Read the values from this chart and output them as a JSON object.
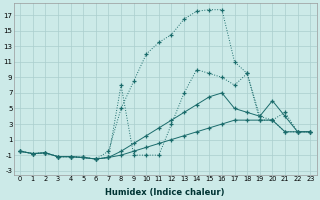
{
  "xlabel": "Humidex (Indice chaleur)",
  "bg_color": "#cceae8",
  "grid_color": "#aacece",
  "line_color": "#1a6b6b",
  "xlim": [
    -0.5,
    23.5
  ],
  "ylim": [
    -3.5,
    18.5
  ],
  "xticks": [
    0,
    1,
    2,
    3,
    4,
    5,
    6,
    7,
    8,
    9,
    10,
    11,
    12,
    13,
    14,
    15,
    16,
    17,
    18,
    19,
    20,
    21,
    22,
    23
  ],
  "yticks": [
    -3,
    -1,
    1,
    3,
    5,
    7,
    9,
    11,
    13,
    15,
    17
  ],
  "s1_x": [
    0,
    1,
    2,
    3,
    4,
    5,
    6,
    7,
    8,
    9,
    10,
    11,
    12,
    13,
    14,
    15,
    16,
    17,
    18,
    19,
    20,
    21,
    22,
    23
  ],
  "s1_y": [
    -0.5,
    -0.8,
    -0.7,
    -1.2,
    -1.2,
    -1.3,
    -1.5,
    -1.3,
    -1.0,
    -0.5,
    0.0,
    0.5,
    1.0,
    1.5,
    2.0,
    2.5,
    3.0,
    3.5,
    3.5,
    3.5,
    3.5,
    2.0,
    2.0,
    2.0
  ],
  "s2_x": [
    0,
    1,
    2,
    3,
    4,
    5,
    6,
    7,
    8,
    9,
    10,
    11,
    12,
    13,
    14,
    15,
    16,
    17,
    18,
    19,
    20,
    21,
    22,
    23
  ],
  "s2_y": [
    -0.5,
    -0.8,
    -0.7,
    -1.2,
    -1.2,
    -1.3,
    -1.5,
    -1.3,
    -0.5,
    0.5,
    1.5,
    2.5,
    3.5,
    4.5,
    5.5,
    6.5,
    7.0,
    5.0,
    4.5,
    4.0,
    6.0,
    4.0,
    2.0,
    2.0
  ],
  "s3_x": [
    0,
    1,
    2,
    3,
    4,
    5,
    6,
    7,
    8,
    9,
    10,
    11,
    12,
    13,
    14,
    15,
    16,
    17,
    18,
    19,
    20,
    21,
    22,
    23
  ],
  "s3_y": [
    -0.5,
    -0.8,
    -0.7,
    -1.2,
    -1.2,
    -1.3,
    -1.5,
    -1.3,
    8.0,
    -1.0,
    -1.0,
    -1.0,
    3.0,
    7.0,
    10.0,
    9.5,
    9.0,
    8.0,
    9.5,
    3.5,
    3.5,
    2.0,
    2.0,
    2.0
  ],
  "s4_x": [
    0,
    1,
    2,
    3,
    4,
    5,
    6,
    7,
    8,
    9,
    10,
    11,
    12,
    13,
    14,
    15,
    16,
    17,
    18,
    19,
    20,
    21,
    22,
    23
  ],
  "s4_y": [
    -0.5,
    -0.8,
    -0.7,
    -1.2,
    -1.2,
    -1.3,
    -1.5,
    -0.5,
    5.0,
    8.5,
    12.0,
    13.5,
    14.5,
    16.5,
    17.5,
    17.7,
    17.7,
    11.0,
    9.5,
    4.0,
    3.5,
    4.5,
    2.0,
    2.0
  ]
}
